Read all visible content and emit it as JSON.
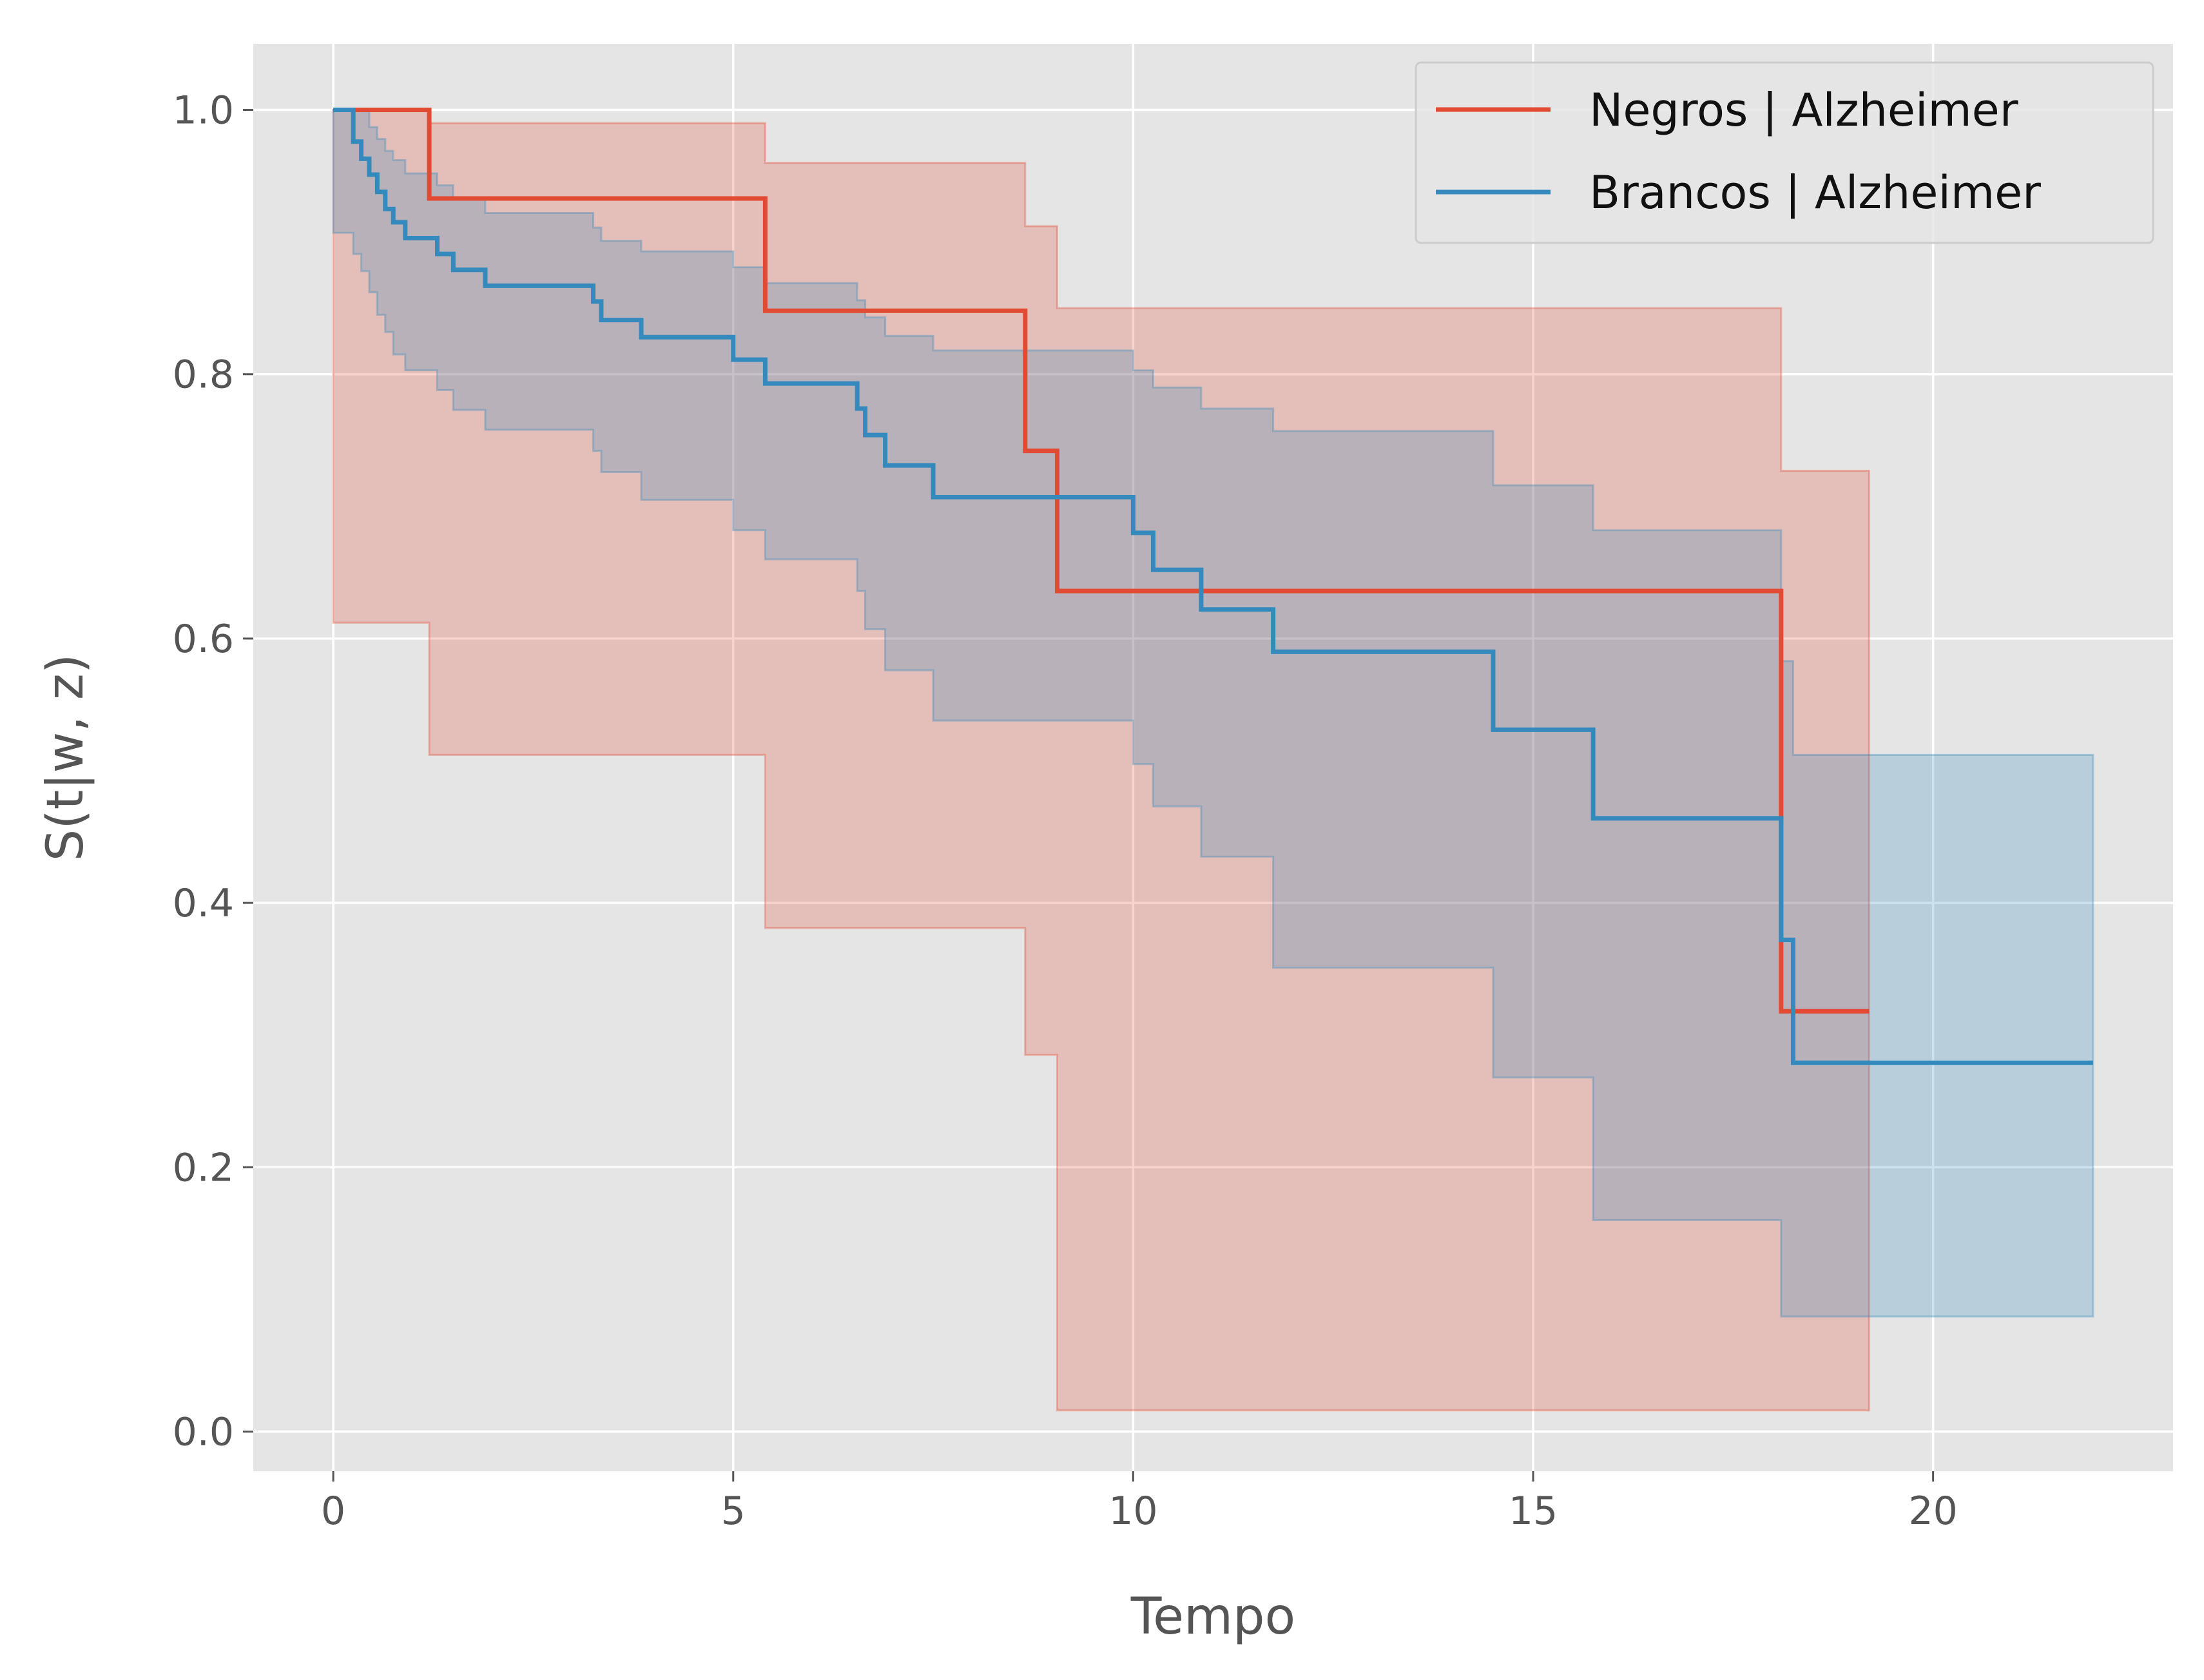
{
  "chart_data": {
    "type": "line",
    "title": "",
    "xlabel": "Tempo",
    "ylabel": "S(t|w, z)",
    "xlim": [
      -1,
      23
    ],
    "ylim": [
      -0.03,
      1.05
    ],
    "x_ticks": [
      0,
      5,
      10,
      15,
      20
    ],
    "y_ticks": [
      0.0,
      0.2,
      0.4,
      0.6,
      0.8,
      1.0
    ],
    "x_tick_labels": [
      "0",
      "5",
      "10",
      "15",
      "20"
    ],
    "y_tick_labels": [
      "0.0",
      "0.2",
      "0.4",
      "0.6",
      "0.8",
      "1.0"
    ],
    "grid": true,
    "legend_position": "top-right",
    "series": [
      {
        "name": "Negros | Alzheimer",
        "color": "#E24A33",
        "step": "post",
        "x": [
          0,
          1.2,
          5.4,
          8.65,
          9.05,
          18.1,
          19.2
        ],
        "y": [
          1.0,
          0.933,
          0.848,
          0.742,
          0.636,
          0.318,
          0.318
        ],
        "ci_x": [
          0,
          1.2,
          5.4,
          8.65,
          9.05,
          18.1,
          19.2
        ],
        "ci_lower": [
          1.0,
          0.612,
          0.512,
          0.381,
          0.285,
          0.016,
          0.016
        ],
        "ci_upper": [
          1.0,
          0.99,
          0.96,
          0.912,
          0.85,
          0.727,
          0.727
        ]
      },
      {
        "name": "Brancos | Alzheimer",
        "color": "#348ABD",
        "step": "post",
        "x": [
          0,
          0.25,
          0.35,
          0.45,
          0.55,
          0.65,
          0.75,
          0.9,
          1.3,
          1.5,
          1.9,
          3.25,
          3.35,
          3.85,
          5.0,
          5.4,
          6.55,
          6.65,
          6.9,
          7.5,
          10.0,
          10.25,
          10.85,
          11.75,
          14.5,
          15.75,
          18.1,
          18.25,
          22.0
        ],
        "y": [
          1.0,
          0.976,
          0.963,
          0.951,
          0.938,
          0.925,
          0.915,
          0.903,
          0.891,
          0.879,
          0.867,
          0.855,
          0.841,
          0.828,
          0.811,
          0.793,
          0.774,
          0.754,
          0.731,
          0.707,
          0.68,
          0.652,
          0.622,
          0.59,
          0.531,
          0.464,
          0.372,
          0.279,
          0.279
        ],
        "ci_x": [
          0,
          0.25,
          0.35,
          0.45,
          0.55,
          0.65,
          0.75,
          0.9,
          1.3,
          1.5,
          1.9,
          3.25,
          3.35,
          3.85,
          5.0,
          5.4,
          6.55,
          6.65,
          6.9,
          7.5,
          10.0,
          10.25,
          10.85,
          11.75,
          14.5,
          15.75,
          18.1,
          18.25,
          22.0
        ],
        "ci_lower": [
          1.0,
          0.907,
          0.891,
          0.878,
          0.862,
          0.845,
          0.832,
          0.815,
          0.803,
          0.788,
          0.773,
          0.758,
          0.742,
          0.726,
          0.705,
          0.682,
          0.66,
          0.636,
          0.607,
          0.576,
          0.538,
          0.505,
          0.473,
          0.435,
          0.351,
          0.268,
          0.16,
          0.087,
          0.087
        ],
        "ci_upper": [
          1.0,
          1.0,
          0.999,
          0.987,
          0.978,
          0.969,
          0.962,
          0.952,
          0.943,
          0.933,
          0.922,
          0.911,
          0.901,
          0.893,
          0.881,
          0.869,
          0.856,
          0.843,
          0.829,
          0.818,
          0.803,
          0.79,
          0.774,
          0.757,
          0.716,
          0.682,
          0.583,
          0.512,
          0.512
        ]
      }
    ]
  }
}
